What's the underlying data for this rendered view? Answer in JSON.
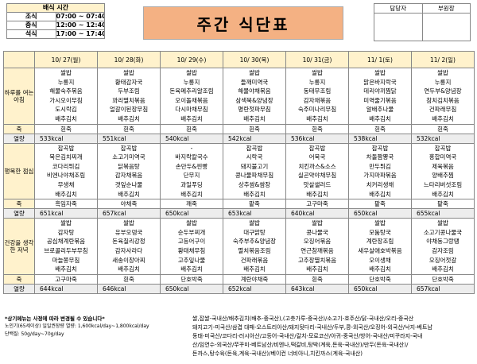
{
  "serving_time": {
    "title": "배식 시간",
    "rows": [
      [
        "조식",
        "07:00 ~ 07:40"
      ],
      [
        "중식",
        "12:00 ~ 12:40"
      ],
      [
        "석식",
        "17:00 ~ 17:40"
      ]
    ]
  },
  "header": {
    "title": "주간 식단표"
  },
  "approval": {
    "labels": [
      "담당자",
      "부원장"
    ]
  },
  "table": {
    "dates": [
      "10/ 27(월)",
      "10/ 28(화)",
      "10/ 29(수)",
      "10/ 30(목)",
      "10/ 31(금)",
      "11/ 1(토)",
      "11/ 2(일)"
    ],
    "meals": [
      {
        "label": "하루를 여는 아침",
        "menu": [
          [
            "쌀밥",
            "누룽지",
            "해물숙주볶음",
            "가시오이무침",
            "도시락김",
            "배추김치"
          ],
          [
            "쌀밥",
            "황태감자국",
            "두부조림",
            "꽈리멸치볶음",
            "얼갈이된장무침",
            "배추김치"
          ],
          [
            "쌀밥",
            "누룽지",
            "돈육메추리알조림",
            "오이돌채볶음",
            "다시마채무침",
            "배추김치"
          ],
          [
            "쌀밥",
            "들깨미역국",
            "해물야채볶음",
            "삼색묵&양념장",
            "명란젓파무침",
            "배추김치"
          ],
          [
            "쌀밥",
            "누룽지",
            "동태무조림",
            "감자채볶음",
            "숙주미나리무침",
            "배추김치"
          ],
          [
            "쌀밥",
            "맑은바지락국",
            "데리야끼찜닭",
            "미역줄기볶음",
            "알배추나물",
            "배추김치"
          ],
          [
            "쌀밥",
            "누룽지",
            "연두부&양념장",
            "참치김치볶음",
            "건파래무침",
            "배추김치"
          ]
        ],
        "porridge_label": "죽",
        "porridge": [
          "흰죽",
          "흰죽",
          "흰죽",
          "흰죽",
          "흰죽",
          "흰죽",
          "흰죽"
        ],
        "calorie_label": "열량",
        "calories": [
          "533kcal",
          "551kcal",
          "540kcal",
          "542kcal",
          "536kcal",
          "538kcal",
          "532kcal"
        ]
      },
      {
        "label": "행복한 점심",
        "menu": [
          [
            "잡곡밥",
            "묵은김치찌개",
            "코다리튀김",
            "비엔나야채조림",
            "무생채",
            "배추김치"
          ],
          [
            "잡곡밥",
            "소고기미역국",
            "닭볶음탕",
            "감자채볶음",
            "갯잎순나물",
            "배추김치"
          ],
          [
            "-",
            "바지락칼국수",
            "손만두&찐빵",
            "단무지",
            "과일푸딩",
            "배추김치"
          ],
          [
            "잡곡밥",
            "시락국",
            "돼지불고기",
            "콩나물파채무침",
            "상추쌈&쌈장",
            "배추김치"
          ],
          [
            "잡곡밥",
            "어묵국",
            "치킨까스&소스",
            "실곤약야채무침",
            "맛살샐러드",
            "배추김치"
          ],
          [
            "잡곡밥",
            "차돌짬뽕국",
            "만두튀김",
            "가지마파볶음",
            "치커리생채",
            "배추김치"
          ],
          [
            "잡곡밥",
            "홍합미역국",
            "제육볶음",
            "양배추찜",
            "느타리버섯조림",
            "배추김치"
          ]
        ],
        "porridge_label": "죽",
        "porridge": [
          "흑임자죽",
          "야채죽",
          "깨죽",
          "팥죽",
          "고구마죽",
          "팥죽",
          "팥죽"
        ],
        "calorie_label": "열량",
        "calories": [
          "651kcal",
          "657kcal",
          "650kcal",
          "653kcal",
          "640kcal",
          "650kcal",
          "655kcal"
        ]
      },
      {
        "label": "건강을 생각한 저녁",
        "menu": [
          [
            "쌀밥",
            "감자탕",
            "공심채계란볶음",
            "브로콜리두부무침",
            "마늘쫑무침",
            "배추김치"
          ],
          [
            "쌀밥",
            "유부오뎅국",
            "돈육칠리강정",
            "감자사라다",
            "새송이장아찌",
            "배추김치"
          ],
          [
            "쌀밥",
            "순두부찌개",
            "고등어구이",
            "황태채무침",
            "고추잎나물",
            "배추김치"
          ],
          [
            "쌀밥",
            "대구맑탕",
            "숙주부추&양념장",
            "멸치볶음조림",
            "건파래볶음",
            "배추김치"
          ],
          [
            "쌀밥",
            "콩나물국",
            "오징어볶음",
            "연근참깨볶음",
            "고추장멸치볶음",
            "배추김치"
          ],
          [
            "쌀밥",
            "모둠탕국",
            "계란장조림",
            "새우살애호박볶음",
            "오이생채",
            "배추김치"
          ],
          [
            "쌀밥",
            "소고기콩나물국",
            "야채동그랑땡",
            "감자조림",
            "오징어젓갈",
            "배추김치"
          ]
        ],
        "porridge_label": "죽",
        "porridge": [
          "고구마죽",
          "흰죽",
          "단호박죽",
          "계란야채죽",
          "흰죽",
          "단호박죽",
          "단호박죽"
        ],
        "calorie_label": "열량",
        "calories": [
          "644kcal",
          "646kcal",
          "650kcal",
          "652kcal",
          "643kcal",
          "650kcal",
          "657kcal"
        ]
      }
    ]
  },
  "footer": {
    "notes": [
      "*상기메뉴는 사정에 따라 변경될 수 있습니다*",
      "노인기(65세이상) 일일권장량 열량: 1,600kcal/day~1,800kcal/day",
      "단백질: 50g/day~70g/day"
    ],
    "origin": [
      "쌀,잡쌀-국내산/배추김치(배추-중국산),(고춧가루-중국산)/소고기-호주산/닭-국내산/오리-중국산",
      "돼지고기-미국산/삼겹 대패-오스트리아산/돼지뒷다리-국내산/두부,콩-외국산/오징어-외국산/낙지-베트남",
      "동태-미국산/코다리-러시아산/고등어-국내산/갈치-모로코산/아귀-중국산/방어-국내산/미꾸라지-국내",
      "산/임연수-외국산/쭈꾸미-베트남산/비엔나,떡갈비,탕박(계육,돈육-국내산)/만두(돈육-국내산)/",
      "돈까스,탕수육(돈육,계육-국내산)/베이컨 너비아니,치킨까스(계육-국내산)"
    ]
  }
}
